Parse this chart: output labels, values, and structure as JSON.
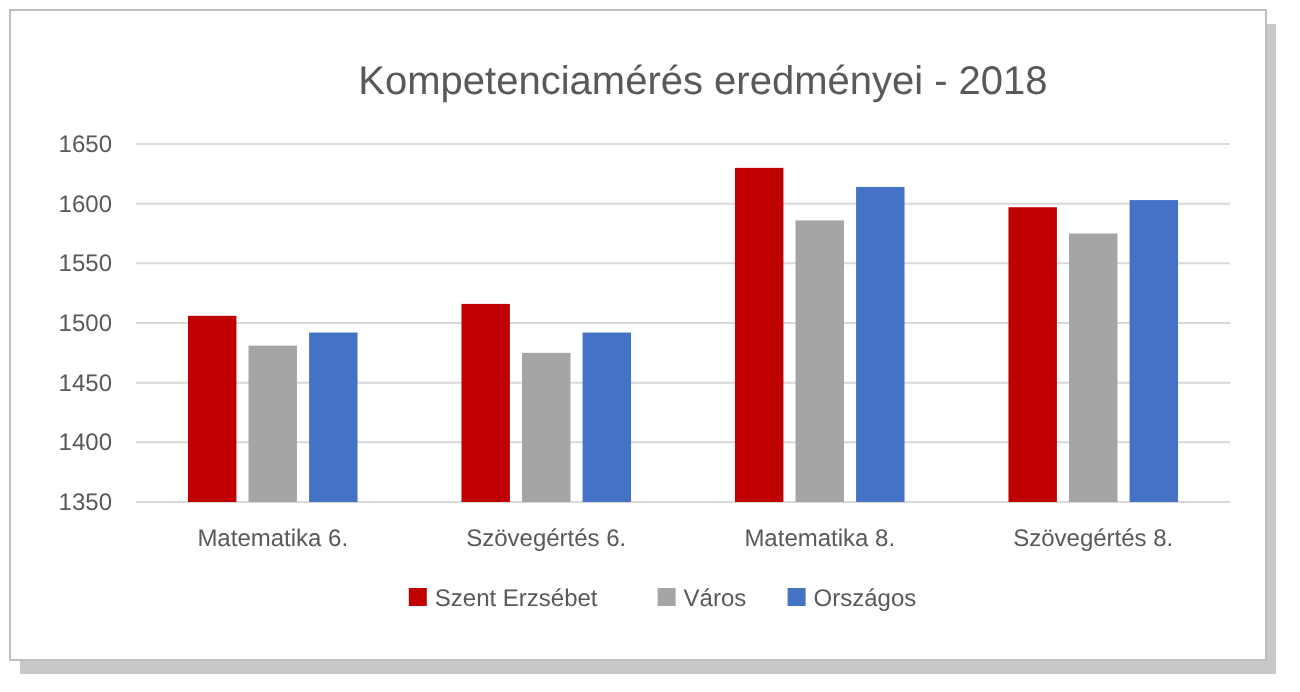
{
  "chart_data": {
    "type": "bar",
    "title": "Kompetenciamérés eredményei - 2018",
    "categories": [
      "Matematika 6.",
      "Szövegértés 6.",
      "Matematika 8.",
      "Szövegértés 8."
    ],
    "series": [
      {
        "name": "Szent Erzsébet",
        "color": "#c00000",
        "values": [
          1506,
          1516,
          1630,
          1597
        ]
      },
      {
        "name": "Város",
        "color": "#a5a5a5",
        "values": [
          1481,
          1475,
          1586,
          1575
        ]
      },
      {
        "name": "Országos",
        "color": "#4472c4",
        "values": [
          1492,
          1492,
          1614,
          1603
        ]
      }
    ],
    "ylim": [
      1350,
      1650
    ],
    "yticks": [
      1350,
      1400,
      1450,
      1500,
      1550,
      1600,
      1650
    ],
    "grid": "y",
    "legend": "bottom"
  }
}
